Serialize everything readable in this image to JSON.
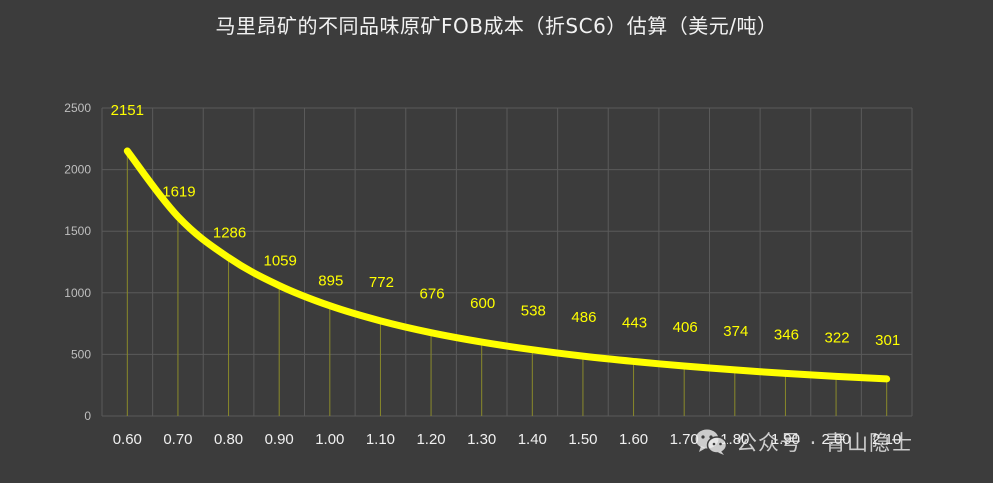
{
  "chart_data": {
    "type": "line",
    "title": "马里昂矿的不同品味原矿FOB成本（折SC6）估算（美元/吨）",
    "xlabel": "",
    "ylabel": "",
    "categories": [
      "0.60",
      "0.70",
      "0.80",
      "0.90",
      "1.00",
      "1.10",
      "1.20",
      "1.30",
      "1.40",
      "1.50",
      "1.60",
      "1.70",
      "1.80",
      "1.90",
      "2.00",
      "2.10"
    ],
    "values": [
      2151,
      1619,
      1286,
      1059,
      895,
      772,
      676,
      600,
      538,
      486,
      443,
      406,
      374,
      346,
      322,
      301
    ],
    "yticks": [
      "0",
      "500",
      "1000",
      "1500",
      "2000",
      "2500"
    ],
    "ylim": [
      0,
      2500
    ],
    "grid": true,
    "legend": "none",
    "data_labels": true,
    "colors": {
      "background": "#3c3c3c",
      "line": "#ffff00",
      "labels": "#ffff00",
      "grid": "#5a5a5a",
      "drop_lines": "#8a8a2a",
      "axis_text": "#bfbfbf",
      "x_text": "#f0f0f0",
      "title": "#f2f2f2"
    }
  },
  "watermark": {
    "text": "公众号 · 青山隐士",
    "icon": "wechat-icon"
  }
}
